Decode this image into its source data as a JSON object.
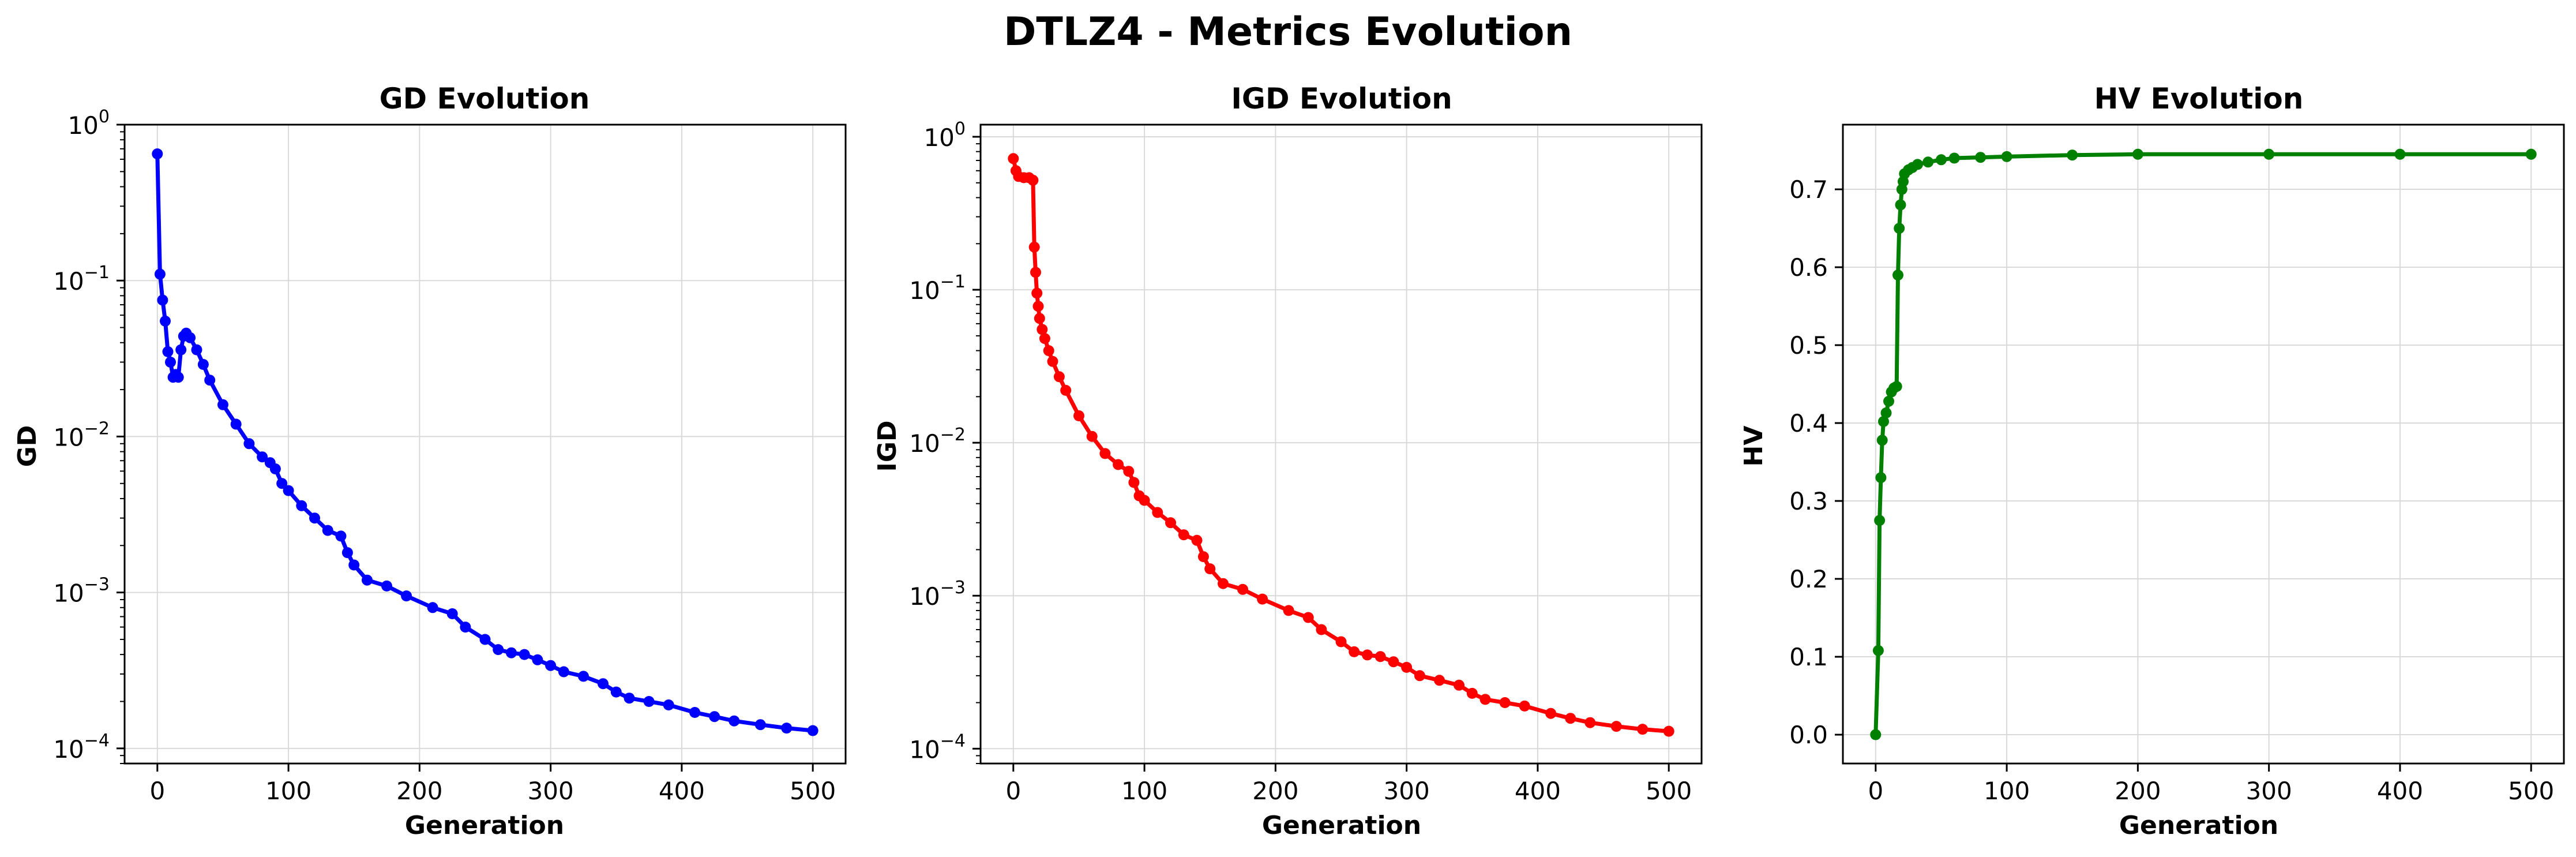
{
  "figure": {
    "suptitle": "DTLZ4 - Metrics Evolution"
  },
  "chart_data": [
    {
      "type": "line",
      "title": "GD Evolution",
      "xlabel": "Generation",
      "ylabel": "GD",
      "yscale": "log",
      "xlim": [
        -25,
        525
      ],
      "ylim": [
        8e-05,
        1.0
      ],
      "xticks": [
        0,
        100,
        200,
        300,
        400,
        500
      ],
      "xtick_labels": [
        "0",
        "100",
        "200",
        "300",
        "400",
        "500"
      ],
      "yticks": [
        0.0001,
        0.001,
        0.01,
        0.1,
        1
      ],
      "ytick_labels": [
        [
          "10",
          "−4"
        ],
        [
          "10",
          "−3"
        ],
        [
          "10",
          "−2"
        ],
        [
          "10",
          "−1"
        ],
        [
          "10",
          "0"
        ]
      ],
      "grid": true,
      "color": "#0000ff",
      "series": [
        {
          "x": [
            0,
            2,
            4,
            6,
            8,
            10,
            12,
            14,
            16,
            18,
            20,
            22,
            25,
            30,
            35,
            40,
            50,
            60,
            70,
            80,
            86,
            90,
            95,
            100,
            110,
            120,
            130,
            140,
            145,
            150,
            160,
            175,
            190,
            210,
            225,
            235,
            250,
            260,
            270,
            280,
            290,
            300,
            310,
            325,
            340,
            350,
            360,
            375,
            390,
            410,
            425,
            440,
            460,
            480,
            500
          ],
          "y": [
            0.65,
            0.11,
            0.075,
            0.055,
            0.035,
            0.03,
            0.024,
            0.025,
            0.024,
            0.036,
            0.044,
            0.046,
            0.043,
            0.036,
            0.029,
            0.023,
            0.016,
            0.012,
            0.009,
            0.0074,
            0.0068,
            0.0062,
            0.005,
            0.0045,
            0.0036,
            0.003,
            0.0025,
            0.0023,
            0.0018,
            0.0015,
            0.0012,
            0.0011,
            0.00095,
            0.0008,
            0.00073,
            0.0006,
            0.0005,
            0.00043,
            0.00041,
            0.0004,
            0.00037,
            0.00034,
            0.00031,
            0.00029,
            0.00026,
            0.00023,
            0.00021,
            0.0002,
            0.00019,
            0.00017,
            0.00016,
            0.00015,
            0.000142,
            0.000135,
            0.00013
          ]
        }
      ]
    },
    {
      "type": "line",
      "title": "IGD Evolution",
      "xlabel": "Generation",
      "ylabel": "IGD",
      "yscale": "log",
      "xlim": [
        -25,
        525
      ],
      "ylim": [
        8e-05,
        1.2
      ],
      "xticks": [
        0,
        100,
        200,
        300,
        400,
        500
      ],
      "xtick_labels": [
        "0",
        "100",
        "200",
        "300",
        "400",
        "500"
      ],
      "yticks": [
        0.0001,
        0.001,
        0.01,
        0.1,
        1
      ],
      "ytick_labels": [
        [
          "10",
          "−4"
        ],
        [
          "10",
          "−3"
        ],
        [
          "10",
          "−2"
        ],
        [
          "10",
          "−1"
        ],
        [
          "10",
          "0"
        ]
      ],
      "grid": true,
      "color": "#ff0000",
      "series": [
        {
          "x": [
            0,
            2,
            4,
            8,
            12,
            15,
            16,
            17,
            18,
            19,
            20,
            22,
            24,
            27,
            30,
            35,
            40,
            50,
            60,
            70,
            80,
            88,
            92,
            96,
            100,
            110,
            120,
            130,
            140,
            145,
            150,
            160,
            175,
            190,
            210,
            225,
            235,
            250,
            260,
            270,
            280,
            290,
            300,
            310,
            325,
            340,
            350,
            360,
            375,
            390,
            410,
            425,
            440,
            460,
            480,
            500
          ],
          "y": [
            0.72,
            0.6,
            0.55,
            0.54,
            0.54,
            0.52,
            0.19,
            0.13,
            0.095,
            0.078,
            0.065,
            0.055,
            0.048,
            0.04,
            0.034,
            0.027,
            0.022,
            0.015,
            0.011,
            0.0085,
            0.0072,
            0.0065,
            0.0055,
            0.0045,
            0.0042,
            0.0035,
            0.003,
            0.0025,
            0.0023,
            0.0018,
            0.0015,
            0.0012,
            0.0011,
            0.00095,
            0.0008,
            0.00072,
            0.0006,
            0.0005,
            0.00043,
            0.00041,
            0.0004,
            0.00037,
            0.00034,
            0.0003,
            0.00028,
            0.00026,
            0.00023,
            0.00021,
            0.0002,
            0.00019,
            0.00017,
            0.000158,
            0.000148,
            0.00014,
            0.000134,
            0.00013
          ]
        }
      ]
    },
    {
      "type": "line",
      "title": "HV Evolution",
      "xlabel": "Generation",
      "ylabel": "HV",
      "yscale": "linear",
      "xlim": [
        -25,
        525
      ],
      "ylim": [
        -0.037,
        0.783
      ],
      "xticks": [
        0,
        100,
        200,
        300,
        400,
        500
      ],
      "xtick_labels": [
        "0",
        "100",
        "200",
        "300",
        "400",
        "500"
      ],
      "yticks": [
        0.0,
        0.1,
        0.2,
        0.3,
        0.4,
        0.5,
        0.6,
        0.7
      ],
      "ytick_labels": [
        "0.0",
        "0.1",
        "0.2",
        "0.3",
        "0.4",
        "0.5",
        "0.6",
        "0.7"
      ],
      "grid": true,
      "color": "#008000",
      "series": [
        {
          "x": [
            0,
            2,
            3,
            4,
            5,
            6,
            8,
            10,
            12,
            14,
            16,
            17,
            18,
            19,
            20,
            21,
            22,
            25,
            28,
            32,
            40,
            50,
            60,
            80,
            100,
            150,
            200,
            300,
            400,
            500
          ],
          "y": [
            0.0,
            0.108,
            0.275,
            0.33,
            0.378,
            0.402,
            0.413,
            0.428,
            0.44,
            0.445,
            0.447,
            0.59,
            0.65,
            0.68,
            0.7,
            0.71,
            0.72,
            0.725,
            0.728,
            0.732,
            0.735,
            0.738,
            0.74,
            0.741,
            0.742,
            0.744,
            0.745,
            0.745,
            0.745,
            0.745
          ]
        }
      ]
    }
  ]
}
